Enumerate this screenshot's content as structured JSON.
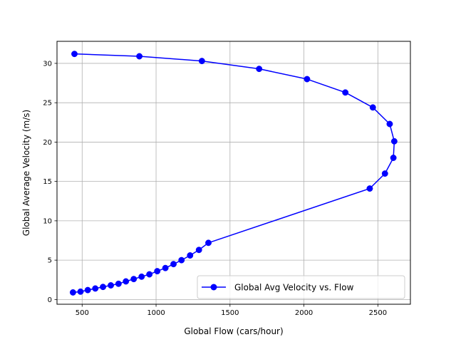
{
  "chart_data": {
    "type": "line",
    "title": "",
    "xlabel": "Global Flow (cars/hour)",
    "ylabel": "Global Average Velocity (m/s)",
    "xlim": [
      330,
      2720
    ],
    "ylim": [
      -0.6,
      32.8
    ],
    "xticks": [
      500,
      1000,
      1500,
      2000,
      2500
    ],
    "yticks": [
      0,
      5,
      10,
      15,
      20,
      25,
      30
    ],
    "grid": true,
    "legend_position": "lower right",
    "colors": {
      "series": "#0000ff",
      "grid": "#b0b0b0",
      "frame": "#000000"
    },
    "series": [
      {
        "name": "Global Avg Velocity vs. Flow",
        "marker": "circle",
        "x": [
          448,
          887,
          1310,
          1697,
          2021,
          2280,
          2466,
          2580,
          2611,
          2605,
          2548,
          2445,
          1354,
          1290,
          1230,
          1172,
          1118,
          1063,
          1008,
          955,
          902,
          849,
          796,
          746,
          694,
          641,
          589,
          538,
          489,
          438
        ],
        "y": [
          31.2,
          30.9,
          30.3,
          29.3,
          28.0,
          26.3,
          24.4,
          22.3,
          20.1,
          18.0,
          16.0,
          14.1,
          7.2,
          6.3,
          5.6,
          5.0,
          4.5,
          4.0,
          3.6,
          3.2,
          2.9,
          2.6,
          2.3,
          2.0,
          1.8,
          1.6,
          1.4,
          1.2,
          1.0,
          0.9
        ]
      }
    ]
  }
}
